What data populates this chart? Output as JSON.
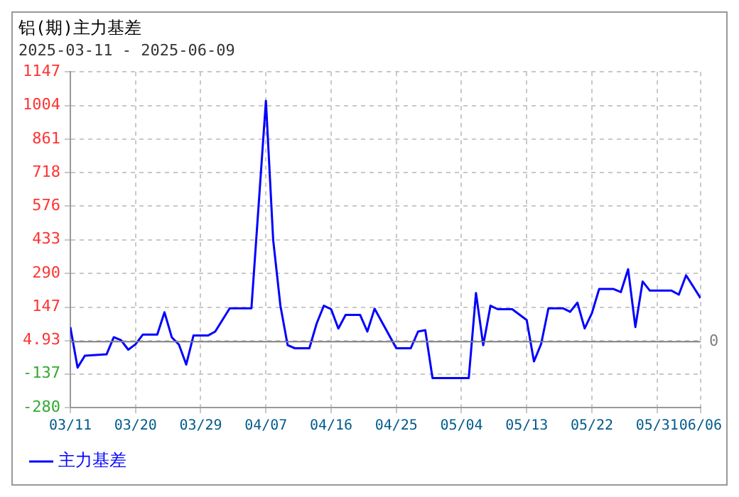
{
  "chart_data": {
    "type": "line",
    "title": "铝(期)主力基差",
    "subtitle": "2025-03-11 - 2025-06-09",
    "x": [
      "2025-03-11",
      "2025-03-12",
      "2025-03-13",
      "2025-03-16",
      "2025-03-17",
      "2025-03-18",
      "2025-03-19",
      "2025-03-20",
      "2025-03-21",
      "2025-03-23",
      "2025-03-24",
      "2025-03-25",
      "2025-03-26",
      "2025-03-27",
      "2025-03-28",
      "2025-03-30",
      "2025-03-31",
      "2025-04-02",
      "2025-04-05",
      "2025-04-06",
      "2025-04-07",
      "2025-04-08",
      "2025-04-09",
      "2025-04-10",
      "2025-04-11",
      "2025-04-13",
      "2025-04-14",
      "2025-04-15",
      "2025-04-16",
      "2025-04-17",
      "2025-04-18",
      "2025-04-20",
      "2025-04-21",
      "2025-04-22",
      "2025-04-25",
      "2025-04-27",
      "2025-04-28",
      "2025-04-29",
      "2025-04-30",
      "2025-05-05",
      "2025-05-06",
      "2025-05-07",
      "2025-05-08",
      "2025-05-09",
      "2025-05-11",
      "2025-05-13",
      "2025-05-14",
      "2025-05-15",
      "2025-05-16",
      "2025-05-18",
      "2025-05-19",
      "2025-05-20",
      "2025-05-21",
      "2025-05-22",
      "2025-05-23",
      "2025-05-25",
      "2025-05-26",
      "2025-05-27",
      "2025-05-28",
      "2025-05-29",
      "2025-05-30",
      "2025-06-02",
      "2025-06-03",
      "2025-06-04",
      "2025-06-06"
    ],
    "series": [
      {
        "name": "主力基差",
        "color": "#0000ff",
        "values": [
          62,
          -110,
          -60,
          -54,
          19,
          6,
          -34,
          -11,
          30,
          30,
          125,
          19,
          -13,
          -97,
          26,
          26,
          43,
          142,
          142,
          583,
          1024,
          433,
          153,
          -15,
          -28,
          -28,
          77,
          153,
          138,
          56,
          114,
          114,
          43,
          140,
          -28,
          -28,
          43,
          49,
          -155,
          -155,
          207,
          -15,
          153,
          138,
          138,
          92,
          -84,
          -9,
          142,
          142,
          127,
          166,
          56,
          121,
          224,
          224,
          211,
          308,
          62,
          256,
          217,
          217,
          200,
          282,
          185
        ]
      }
    ],
    "xlim": [
      "2025-03-11",
      "2025-06-06"
    ],
    "xticks": [
      {
        "value": "2025-03-11",
        "label": "03/11"
      },
      {
        "value": "2025-03-20",
        "label": "03/20"
      },
      {
        "value": "2025-03-29",
        "label": "03/29"
      },
      {
        "value": "2025-04-07",
        "label": "04/07"
      },
      {
        "value": "2025-04-16",
        "label": "04/16"
      },
      {
        "value": "2025-04-25",
        "label": "04/25"
      },
      {
        "value": "2025-05-04",
        "label": "05/04"
      },
      {
        "value": "2025-05-13",
        "label": "05/13"
      },
      {
        "value": "2025-05-22",
        "label": "05/22"
      },
      {
        "value": "2025-05-31",
        "label": "05/31"
      },
      {
        "value": "2025-06-06",
        "label": "06/06"
      }
    ],
    "ylim": [
      -280,
      1147
    ],
    "yticks": [
      -280,
      -137,
      4.93,
      147,
      290,
      433,
      576,
      718,
      861,
      1004,
      1147
    ],
    "ref_lines": [
      {
        "axis": "y",
        "value": 0,
        "label": "0",
        "color": "#808080"
      }
    ],
    "grid": true,
    "legend": "bottom left",
    "marker": "none",
    "line_style": "solid"
  }
}
